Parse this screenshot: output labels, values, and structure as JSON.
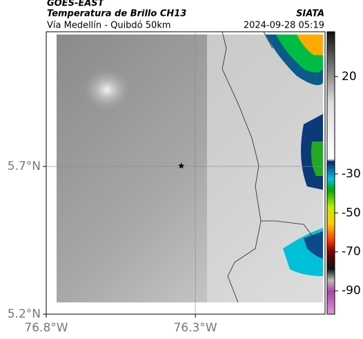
{
  "chart_data": {
    "type": "map",
    "title": "GOES-EAST",
    "subtitle": "Temperatura de Brillo CH13",
    "region": "Vía Medellín - Quibdó 50km",
    "source": "SIATA",
    "timestamp": "2024-09-28 05:19",
    "xlim": [
      -76.8,
      -75.865
    ],
    "ylim": [
      5.2,
      6.156
    ],
    "xticks": [
      {
        "value": -76.8,
        "label": "76.8°W"
      },
      {
        "value": -76.3,
        "label": "76.3°W"
      }
    ],
    "yticks": [
      {
        "value": 5.2,
        "label": "5.2°N"
      },
      {
        "value": 5.7,
        "label": "5.7°N"
      }
    ],
    "grid": true,
    "points": [
      {
        "lon": -76.347,
        "lat": 5.702
      }
    ],
    "clim": [
      -102,
      43
    ],
    "cticks": [
      20,
      -30,
      -50,
      -70,
      -90
    ]
  }
}
